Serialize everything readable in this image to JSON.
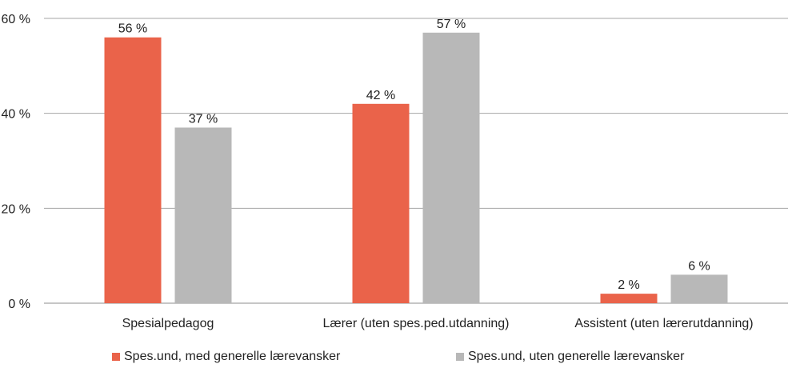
{
  "chart_data": {
    "type": "bar",
    "categories": [
      "Spesialpedagog",
      "Lærer (uten spes.ped.utdanning)",
      "Assistent (uten lærerutdanning)"
    ],
    "series": [
      {
        "name": "Spes.und, med generelle lærevansker",
        "color": "#ea634a",
        "values": [
          56,
          42,
          2
        ],
        "labels": [
          "56 %",
          "42 %",
          "2 %"
        ]
      },
      {
        "name": "Spes.und, uten generelle lærevansker",
        "color": "#b8b8b8",
        "values": [
          37,
          57,
          6
        ],
        "labels": [
          "37 %",
          "57 %",
          "6 %"
        ]
      }
    ],
    "ylim": [
      0,
      60
    ],
    "yticks": [
      0,
      20,
      40,
      60
    ],
    "ytick_labels": [
      "0 %",
      "20 %",
      "40 %",
      "60 %"
    ],
    "grid": true,
    "legend_position": "bottom"
  }
}
